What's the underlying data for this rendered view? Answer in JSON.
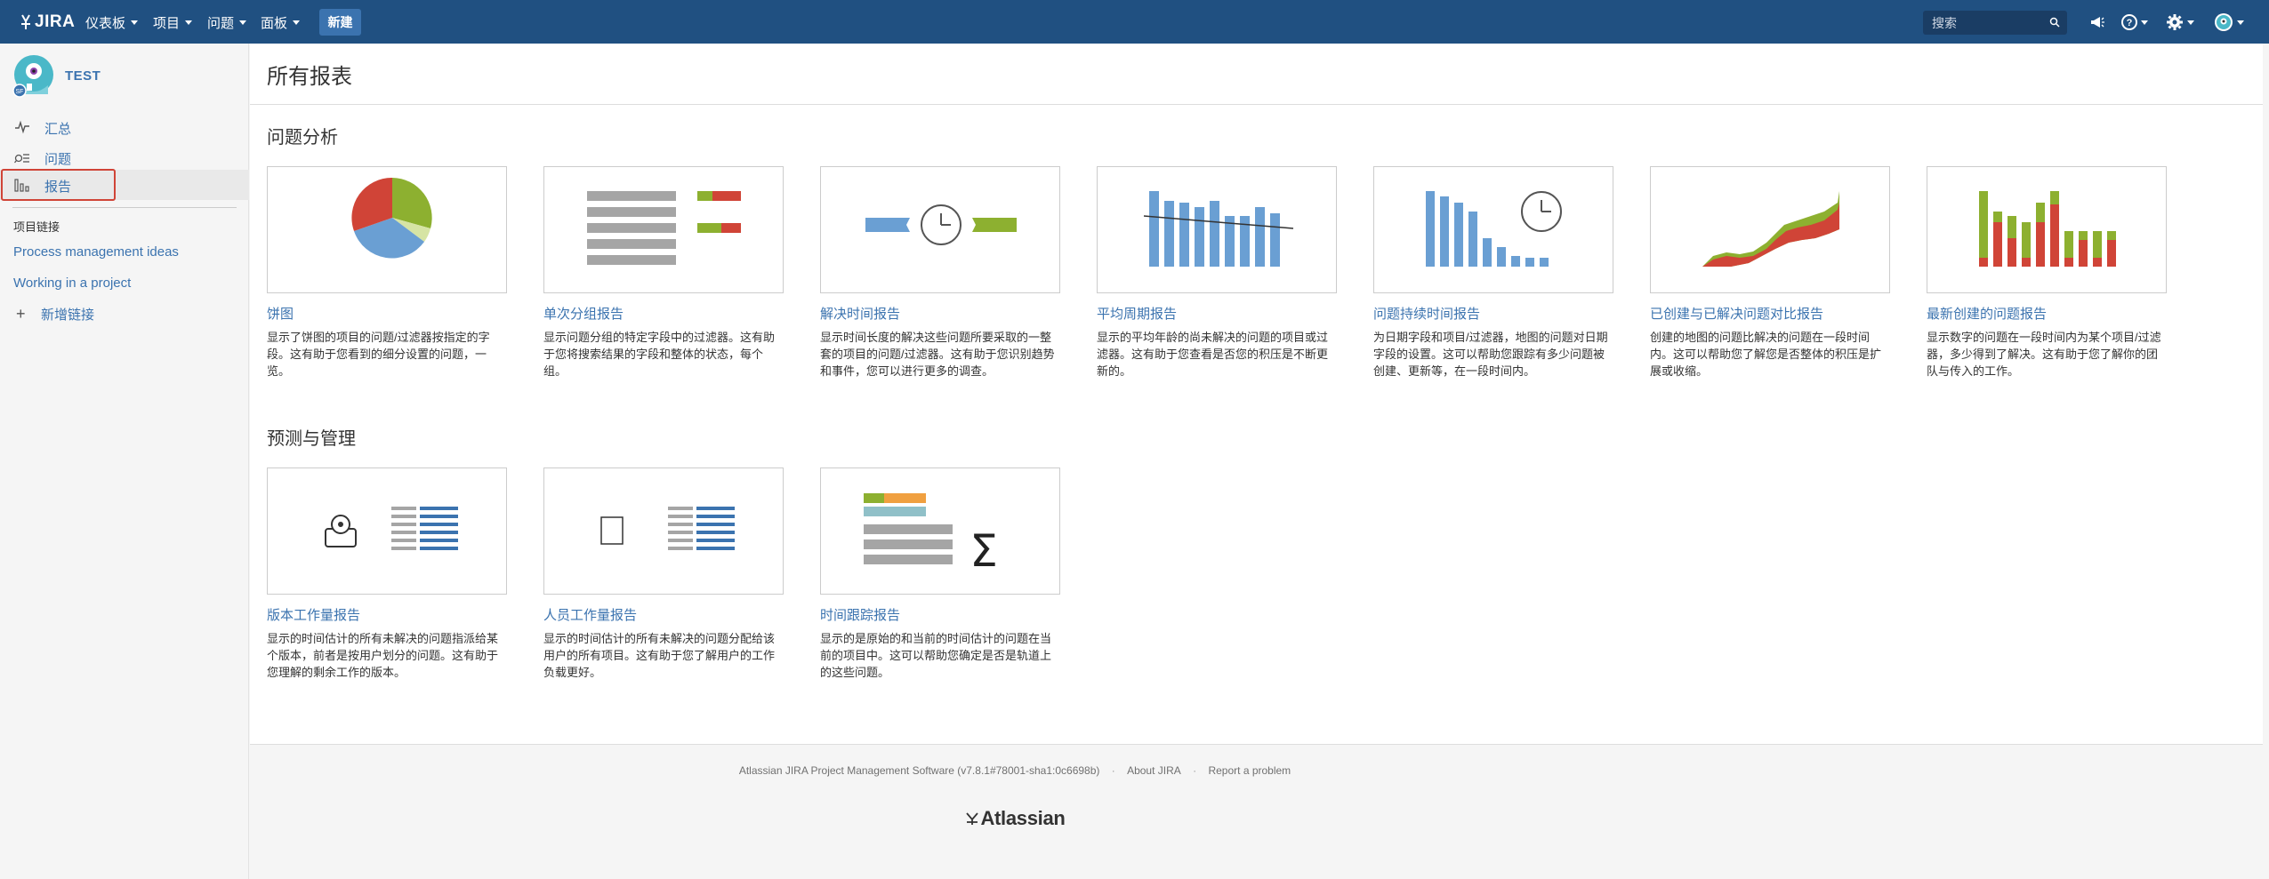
{
  "topbar": {
    "logo_text": "JIRA",
    "menus": [
      {
        "label": "仪表板"
      },
      {
        "label": "项目"
      },
      {
        "label": "问题"
      },
      {
        "label": "面板"
      }
    ],
    "create_label": "新建",
    "search_placeholder": "搜索",
    "bg_color": "#205081"
  },
  "sidebar": {
    "project_name": "TEST",
    "nav": [
      {
        "label": "汇总",
        "icon": "activity-icon"
      },
      {
        "label": "问题",
        "icon": "issues-icon"
      },
      {
        "label": "报告",
        "icon": "reports-icon"
      }
    ],
    "section_title": "项目链接",
    "links": [
      "Process management ideas",
      "Working in a project"
    ],
    "add_link_label": "新增链接"
  },
  "main": {
    "page_title": "所有报表",
    "sections": [
      {
        "title": "问题分析",
        "cards": [
          {
            "title": "饼图",
            "desc": "显示了饼图的项目的问题/过滤器按指定的字段。这有助于您看到的细分设置的问题，一览。",
            "icon": "pie-chart-icon"
          },
          {
            "title": "单次分组报告",
            "desc": "显示问题分组的特定字段中的过滤器。这有助于您将搜索结果的字段和整体的状态，每个组。",
            "icon": "single-level-group-icon"
          },
          {
            "title": "解决时间报告",
            "desc": "显示时间长度的解决这些问题所要采取的一整套的项目的问题/过滤器。这有助于您识别趋势和事件，您可以进行更多的调查。",
            "icon": "resolution-time-icon"
          },
          {
            "title": "平均周期报告",
            "desc": "显示的平均年龄的尚未解决的问题的项目或过滤器。这有助于您查看是否您的积压是不断更新的。",
            "icon": "average-age-icon"
          },
          {
            "title": "问题持续时间报告",
            "desc": "为日期字段和项目/过滤器，地图的问题对日期字段的设置。这可以帮助您跟踪有多少问题被创建、更新等，在一段时间内。",
            "icon": "recently-created-duration-icon"
          },
          {
            "title": "已创建与已解决问题对比报告",
            "desc": "创建的地图的问题比解决的问题在一段时间内。这可以帮助您了解您是否整体的积压是扩展或收缩。",
            "icon": "created-vs-resolved-icon"
          },
          {
            "title": "最新创建的问题报告",
            "desc": "显示数字的问题在一段时间内为某个项目/过滤器，多少得到了解决。这有助于您了解你的团队与传入的工作。",
            "icon": "recently-created-icon"
          }
        ]
      },
      {
        "title": "预测与管理",
        "cards": [
          {
            "title": "版本工作量报告",
            "desc": "显示的时间估计的所有未解决的问题指派给某个版本，前者是按用户划分的问题。这有助于您理解的剩余工作的版本。",
            "icon": "version-workload-icon"
          },
          {
            "title": "人员工作量报告",
            "desc": "显示的时间估计的所有未解决的问题分配给该用户的所有项目。这有助于您了解用户的工作负载更好。",
            "icon": "user-workload-icon"
          },
          {
            "title": "时间跟踪报告",
            "desc": "显示的是原始的和当前的时间估计的问题在当前的项目中。这可以帮助您确定是否是轨道上的这些问题。",
            "icon": "time-tracking-icon"
          }
        ]
      }
    ]
  },
  "footer": {
    "software": "Atlassian JIRA Project Management Software (v7.8.1#78001-sha1:0c6698b)",
    "about": "About JIRA",
    "report": "Report a problem",
    "logo_text": "Atlassian"
  }
}
